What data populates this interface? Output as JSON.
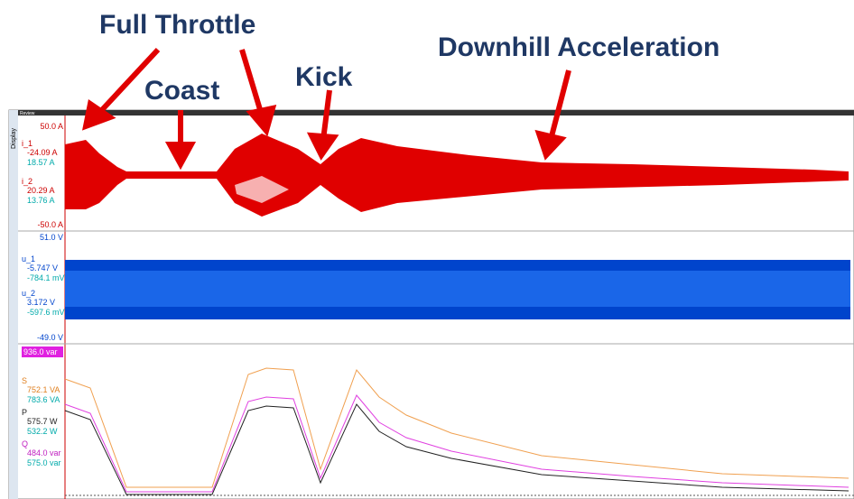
{
  "annotations": [
    "Full Throttle",
    "Coast",
    "Kick",
    "Downhill Acceleration"
  ],
  "sidebar": {
    "tab": "Display",
    "review": "Review"
  },
  "panels": [
    {
      "top": "50.0 A",
      "bottom": "-50.0 A",
      "channels": [
        {
          "name": "i_1",
          "readings": [
            "-24.09 A",
            "18.57 A"
          ]
        },
        {
          "name": "i_2",
          "readings": [
            "20.29 A",
            "13.76 A"
          ]
        }
      ]
    },
    {
      "top": "51.0 V",
      "bottom": "-49.0 V",
      "channels": [
        {
          "name": "u_1",
          "readings": [
            "-5.747 V",
            "-784.1 mV"
          ]
        },
        {
          "name": "u_2",
          "readings": [
            "3.172 V",
            "-597.6 mV"
          ]
        }
      ]
    },
    {
      "top": "936.0 var",
      "channels": [
        {
          "name": "S",
          "readings": [
            "752.1 VA",
            "783.6 VA"
          ]
        },
        {
          "name": "P",
          "readings": [
            "575.7 W",
            "532.2 W"
          ]
        },
        {
          "name": "Q",
          "readings": [
            "484.0 var",
            "575.0 var"
          ]
        }
      ]
    }
  ]
}
